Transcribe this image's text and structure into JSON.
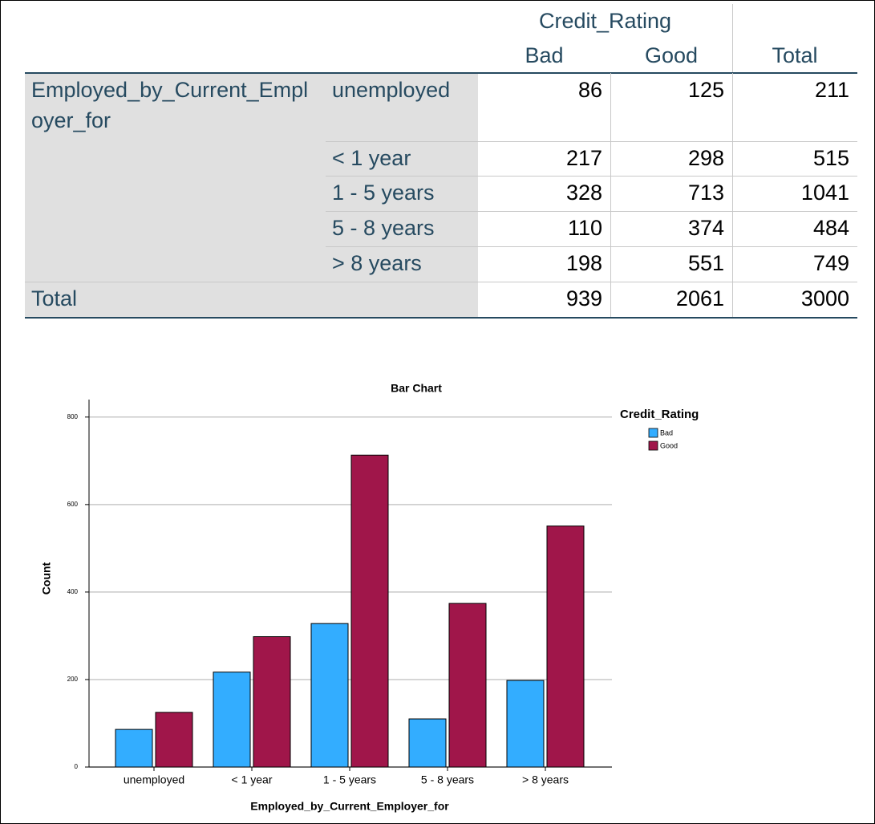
{
  "table": {
    "col_group": "Credit_Rating",
    "columns": [
      "Bad",
      "Good",
      "Total"
    ],
    "row_group": "Employed_by_Current_Employer_for",
    "rows": [
      {
        "label": "unemployed",
        "values": [
          "86",
          "125",
          "211"
        ]
      },
      {
        "label": "< 1 year",
        "values": [
          "217",
          "298",
          "515"
        ]
      },
      {
        "label": "1 - 5 years",
        "values": [
          "328",
          "713",
          "1041"
        ]
      },
      {
        "label": "5 - 8 years",
        "values": [
          "110",
          "374",
          "484"
        ]
      },
      {
        "label": "> 8 years",
        "values": [
          "198",
          "551",
          "749"
        ]
      }
    ],
    "total": {
      "label": "Total",
      "values": [
        "939",
        "2061",
        "3000"
      ]
    }
  },
  "chart_data": {
    "type": "bar",
    "title": "Bar Chart",
    "x_label": "Employed_by_Current_Employer_for",
    "y_label": "Count",
    "categories": [
      "unemployed",
      "< 1 year",
      "1 - 5 years",
      "5 - 8 years",
      "> 8 years"
    ],
    "series": [
      {
        "name": "Bad",
        "color": "#33adff",
        "values": [
          86,
          217,
          328,
          110,
          198
        ]
      },
      {
        "name": "Good",
        "color": "#a0164a",
        "values": [
          125,
          298,
          713,
          374,
          551
        ]
      }
    ],
    "legend_title": "Credit_Rating",
    "legend": "right",
    "ylim": [
      0,
      840
    ],
    "yticks": [
      0,
      200,
      400,
      600,
      800
    ],
    "grid": true
  }
}
